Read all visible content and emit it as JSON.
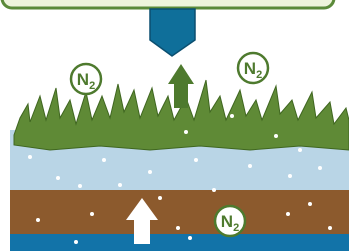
{
  "labels": [
    {
      "symbol": "N",
      "subscript": "2"
    },
    {
      "symbol": "N",
      "subscript": "2"
    },
    {
      "symbol": "N",
      "subscript": "2"
    }
  ]
}
